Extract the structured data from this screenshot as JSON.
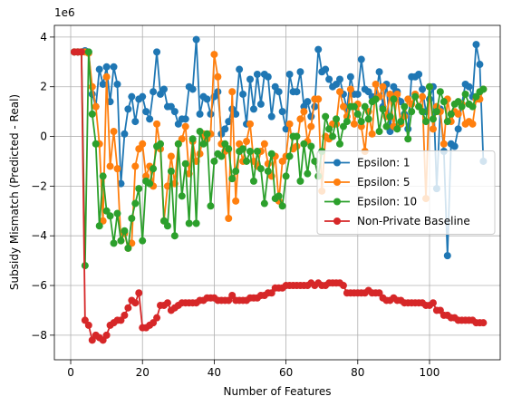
{
  "chart_data": {
    "type": "line",
    "xlabel": "Number of Features",
    "ylabel": "Subsidy Mismatch (Predicted - Real)",
    "y_offset_label": "1e6",
    "x": [
      1,
      2,
      3,
      4,
      5,
      6,
      7,
      8,
      9,
      10,
      11,
      12,
      13,
      14,
      15,
      16,
      17,
      18,
      19,
      20,
      21,
      22,
      23,
      24,
      25,
      26,
      27,
      28,
      29,
      30,
      31,
      32,
      33,
      34,
      35,
      36,
      37,
      38,
      39,
      40,
      41,
      42,
      43,
      44,
      45,
      46,
      47,
      48,
      49,
      50,
      51,
      52,
      53,
      54,
      55,
      56,
      57,
      58,
      59,
      60,
      61,
      62,
      63,
      64,
      65,
      66,
      67,
      68,
      69,
      70,
      71,
      72,
      73,
      74,
      75,
      76,
      77,
      78,
      79,
      80,
      81,
      82,
      83,
      84,
      85,
      86,
      87,
      88,
      89,
      90,
      91,
      92,
      93,
      94,
      95,
      96,
      97,
      98,
      99,
      100,
      101,
      102,
      103,
      104,
      105,
      106,
      107,
      108,
      109,
      110,
      111,
      112,
      113,
      114,
      115
    ],
    "series": [
      {
        "name": "Epsilon: 1",
        "color": "#1f77b4",
        "values": [
          3.4,
          3.4,
          3.4,
          3.45,
          3.4,
          1.7,
          1.2,
          2.7,
          2.1,
          2.8,
          1.4,
          2.8,
          2.1,
          -1.9,
          0.1,
          1.1,
          1.6,
          0.6,
          1.5,
          1.6,
          1.0,
          0.7,
          1.8,
          3.4,
          1.7,
          1.9,
          1.2,
          1.2,
          1.0,
          0.5,
          0.7,
          0.7,
          2.0,
          1.9,
          3.9,
          0.9,
          1.6,
          1.5,
          0.9,
          1.6,
          1.8,
          0.1,
          0.3,
          0.6,
          1.1,
          0.9,
          2.7,
          1.7,
          0.5,
          2.3,
          1.1,
          2.5,
          1.3,
          2.5,
          2.4,
          0.8,
          2.0,
          1.8,
          1.0,
          0.3,
          2.5,
          1.8,
          1.8,
          2.6,
          1.2,
          1.4,
          0.8,
          1.2,
          3.5,
          2.6,
          2.7,
          2.3,
          2.0,
          2.1,
          2.3,
          1.7,
          1.1,
          2.4,
          1.7,
          1.7,
          3.1,
          1.9,
          1.8,
          1.6,
          1.5,
          2.6,
          1.2,
          2.1,
          0.2,
          2.0,
          1.8,
          1.4,
          0.9,
          0.3,
          2.4,
          2.4,
          2.5,
          1.9,
          1.0,
          1.5,
          2.0,
          -2.1,
          1.1,
          -0.6,
          -4.8,
          -0.3,
          -0.4,
          0.3,
          1.3,
          2.1,
          2.0,
          1.6,
          3.7,
          2.9,
          -1.0
        ]
      },
      {
        "name": "Epsilon: 5",
        "color": "#ff7f0e",
        "values": [
          3.4,
          3.4,
          3.4,
          3.4,
          3.35,
          2.0,
          1.2,
          -0.3,
          -3.4,
          2.4,
          -1.2,
          0.2,
          -1.3,
          -4.2,
          -3.9,
          -4.5,
          -4.3,
          -1.2,
          -0.5,
          -0.3,
          -1.6,
          -1.2,
          -2.0,
          0.5,
          -0.5,
          -3.4,
          -2.0,
          -0.8,
          -1.9,
          -0.3,
          -0.1,
          0.4,
          -1.5,
          -0.2,
          -1.0,
          -0.7,
          0.1,
          -0.1,
          0.1,
          3.3,
          2.4,
          -0.3,
          -0.6,
          -3.3,
          1.8,
          -2.6,
          -0.3,
          -1.0,
          -0.2,
          0.5,
          -1.0,
          -1.2,
          -0.6,
          -0.3,
          -1.1,
          -1.6,
          -0.8,
          -2.6,
          -1.0,
          -0.8,
          0.5,
          -0.5,
          -0.4,
          0.7,
          1.0,
          -0.2,
          0.4,
          1.5,
          1.5,
          -2.2,
          0.0,
          -0.1,
          0.5,
          0.5,
          1.8,
          1.2,
          0.8,
          1.9,
          0.5,
          1.3,
          0.4,
          -0.6,
          1.0,
          0.1,
          2.1,
          1.6,
          2.0,
          0.8,
          1.7,
          0.4,
          1.7,
          0.5,
          0.8,
          1.5,
          1.3,
          1.7,
          1.2,
          1.6,
          -2.5,
          2.0,
          0.3,
          1.2,
          1.0,
          -0.3,
          1.5,
          0.6,
          1.0,
          0.9,
          1.3,
          0.5,
          0.6,
          0.5,
          1.5,
          1.5,
          1.9
        ]
      },
      {
        "name": "Epsilon: 10",
        "color": "#2ca02c",
        "values": [
          3.4,
          3.4,
          3.4,
          -5.2,
          3.4,
          0.9,
          -0.3,
          -3.6,
          -1.6,
          -3.0,
          -3.2,
          -4.3,
          -3.1,
          -4.2,
          -3.8,
          -4.5,
          -3.3,
          -2.7,
          -2.1,
          -4.2,
          -1.8,
          -1.9,
          -1.3,
          -0.4,
          -0.3,
          -3.4,
          -3.6,
          -1.4,
          -4.0,
          -0.3,
          -2.4,
          -1.1,
          -3.5,
          -0.1,
          -3.5,
          0.2,
          -0.3,
          0.1,
          -2.8,
          -1.0,
          -0.7,
          -0.8,
          -0.3,
          -0.5,
          -1.7,
          -1.4,
          -0.6,
          -0.5,
          -1.0,
          -0.6,
          -1.8,
          -0.6,
          -1.3,
          -2.7,
          -1.4,
          -0.7,
          -2.5,
          -2.4,
          -2.8,
          -1.6,
          -0.8,
          0.0,
          0.0,
          -1.8,
          -0.3,
          -1.5,
          -0.4,
          -1.0,
          -1.6,
          -0.6,
          0.8,
          0.3,
          0.0,
          0.7,
          -0.3,
          0.4,
          0.6,
          1.2,
          1.2,
          0.9,
          0.6,
          1.2,
          0.7,
          1.4,
          1.5,
          0.2,
          1.1,
          0.4,
          0.8,
          1.5,
          0.3,
          0.6,
          1.2,
          -0.1,
          1.0,
          1.6,
          1.2,
          1.0,
          0.6,
          2.0,
          0.7,
          1.0,
          1.8,
          1.4,
          0.6,
          0.9,
          1.3,
          1.4,
          1.2,
          1.7,
          1.3,
          1.2,
          1.6,
          1.8,
          1.9
        ]
      },
      {
        "name": "Non-Private Baseline",
        "color": "#d62728",
        "values": [
          3.4,
          3.4,
          3.4,
          -7.4,
          -7.6,
          -8.2,
          -8.0,
          -8.1,
          -8.2,
          -8.0,
          -7.6,
          -7.5,
          -7.4,
          -7.4,
          -7.2,
          -6.9,
          -6.6,
          -6.7,
          -6.3,
          -7.7,
          -7.7,
          -7.6,
          -7.5,
          -7.3,
          -6.8,
          -6.8,
          -6.7,
          -7.0,
          -6.9,
          -6.8,
          -6.7,
          -6.7,
          -6.7,
          -6.7,
          -6.7,
          -6.6,
          -6.6,
          -6.5,
          -6.5,
          -6.5,
          -6.6,
          -6.6,
          -6.6,
          -6.6,
          -6.4,
          -6.6,
          -6.6,
          -6.6,
          -6.6,
          -6.5,
          -6.5,
          -6.5,
          -6.4,
          -6.4,
          -6.3,
          -6.3,
          -6.1,
          -6.1,
          -6.1,
          -6.0,
          -6.0,
          -6.0,
          -6.0,
          -6.0,
          -6.0,
          -6.0,
          -5.9,
          -6.0,
          -5.9,
          -6.0,
          -6.0,
          -5.9,
          -5.9,
          -5.9,
          -5.9,
          -6.0,
          -6.3,
          -6.3,
          -6.3,
          -6.3,
          -6.3,
          -6.3,
          -6.2,
          -6.3,
          -6.3,
          -6.3,
          -6.5,
          -6.6,
          -6.6,
          -6.5,
          -6.6,
          -6.6,
          -6.7,
          -6.7,
          -6.7,
          -6.7,
          -6.7,
          -6.7,
          -6.8,
          -6.8,
          -6.7,
          -7.0,
          -7.0,
          -7.2,
          -7.2,
          -7.3,
          -7.3,
          -7.4,
          -7.4,
          -7.4,
          -7.4,
          -7.4,
          -7.5,
          -7.5,
          -7.5
        ]
      }
    ],
    "xlim": [
      -4.55,
      119.7
    ],
    "xticks": [
      0,
      20,
      40,
      60,
      80,
      100
    ],
    "ylim": [
      -8.99,
      4.47
    ],
    "yticks": [
      {
        "value": -8,
        "label": "−8"
      },
      {
        "value": -6,
        "label": "−6"
      },
      {
        "value": -4,
        "label": "−4"
      },
      {
        "value": -2,
        "label": "−2"
      },
      0,
      2,
      4
    ],
    "grid": true,
    "legend": "center right"
  }
}
